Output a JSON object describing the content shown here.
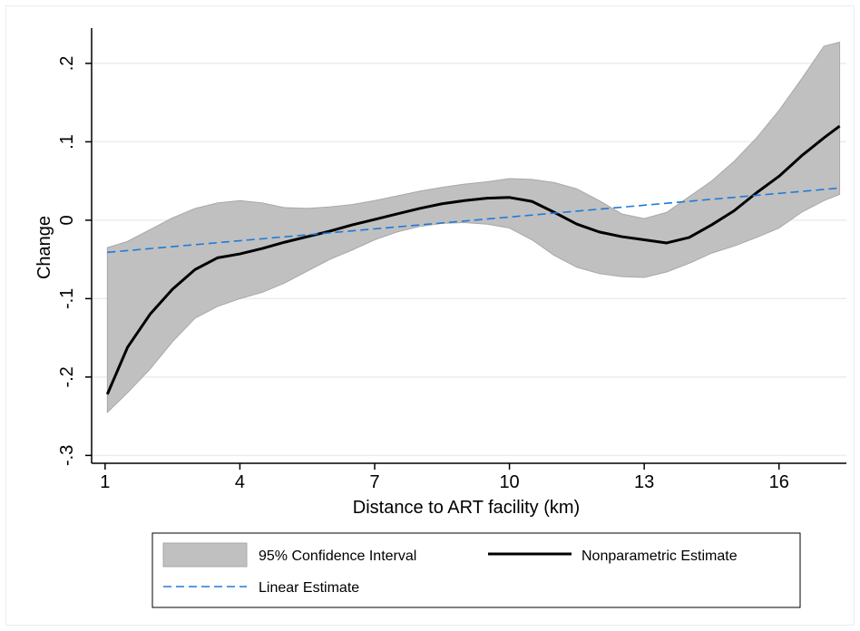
{
  "chart_data": {
    "type": "line",
    "xlabel": "Distance to ART facility (km)",
    "ylabel": "Change",
    "xlim": [
      0.7,
      17.5
    ],
    "ylim": [
      -0.31,
      0.245
    ],
    "xticks": [
      1,
      4,
      7,
      10,
      13,
      16
    ],
    "xtick_labels": [
      "1",
      "4",
      "7",
      "10",
      "13",
      "16"
    ],
    "yticks": [
      0.2,
      0.1,
      0,
      -0.1,
      -0.2,
      -0.3
    ],
    "ytick_labels": [
      ".2",
      ".1",
      "0",
      "-.1",
      "-.2",
      "-.3"
    ],
    "grid": "horizontal",
    "legend": {
      "placement": "bottom",
      "entries": [
        "95% Confidence Interval",
        "Nonparametric Estimate",
        "Linear Estimate"
      ]
    },
    "colors": {
      "ci_fill": "#c0c0c0",
      "ci_edge": "#a8a8a8",
      "nonparametric": "#000000",
      "linear": "#1f7ad8",
      "grid": "#e6eef2"
    },
    "series": [
      {
        "name": "95% Confidence Interval",
        "kind": "band",
        "x": [
          1.05,
          1.5,
          2,
          2.5,
          3,
          3.5,
          4,
          4.5,
          5,
          5.5,
          6,
          6.5,
          7,
          7.5,
          8,
          8.5,
          9,
          9.5,
          10,
          10.5,
          11,
          11.5,
          12,
          12.5,
          13,
          13.5,
          14,
          14.5,
          15,
          15.5,
          16,
          16.5,
          17,
          17.35
        ],
        "upper": [
          -0.035,
          -0.027,
          -0.012,
          0.003,
          0.015,
          0.022,
          0.025,
          0.022,
          0.016,
          0.015,
          0.017,
          0.02,
          0.025,
          0.031,
          0.037,
          0.042,
          0.046,
          0.049,
          0.053,
          0.052,
          0.048,
          0.04,
          0.025,
          0.008,
          0.002,
          0.01,
          0.03,
          0.05,
          0.075,
          0.105,
          0.14,
          0.18,
          0.222,
          0.227
        ],
        "lower": [
          -0.245,
          -0.22,
          -0.19,
          -0.155,
          -0.125,
          -0.11,
          -0.1,
          -0.092,
          -0.08,
          -0.065,
          -0.05,
          -0.038,
          -0.025,
          -0.015,
          -0.008,
          -0.004,
          -0.003,
          -0.005,
          -0.01,
          -0.025,
          -0.045,
          -0.06,
          -0.068,
          -0.072,
          -0.073,
          -0.066,
          -0.055,
          -0.042,
          -0.033,
          -0.022,
          -0.01,
          0.01,
          0.025,
          0.033
        ]
      },
      {
        "name": "Nonparametric Estimate",
        "kind": "line",
        "x": [
          1.05,
          1.5,
          2,
          2.5,
          3,
          3.5,
          4,
          4.5,
          5,
          5.5,
          6,
          6.5,
          7,
          7.5,
          8,
          8.5,
          9,
          9.5,
          10,
          10.5,
          11,
          11.5,
          12,
          12.5,
          13,
          13.5,
          14,
          14.5,
          15,
          15.5,
          16,
          16.5,
          17,
          17.35
        ],
        "y": [
          -0.222,
          -0.162,
          -0.12,
          -0.088,
          -0.063,
          -0.048,
          -0.043,
          -0.036,
          -0.028,
          -0.021,
          -0.014,
          -0.006,
          0.001,
          0.008,
          0.015,
          0.021,
          0.025,
          0.028,
          0.029,
          0.024,
          0.01,
          -0.005,
          -0.015,
          -0.021,
          -0.025,
          -0.029,
          -0.022,
          -0.006,
          0.012,
          0.035,
          0.056,
          0.082,
          0.105,
          0.12
        ]
      },
      {
        "name": "Linear Estimate",
        "kind": "line",
        "x": [
          1.05,
          17.35
        ],
        "y": [
          -0.041,
          0.041
        ]
      }
    ]
  }
}
